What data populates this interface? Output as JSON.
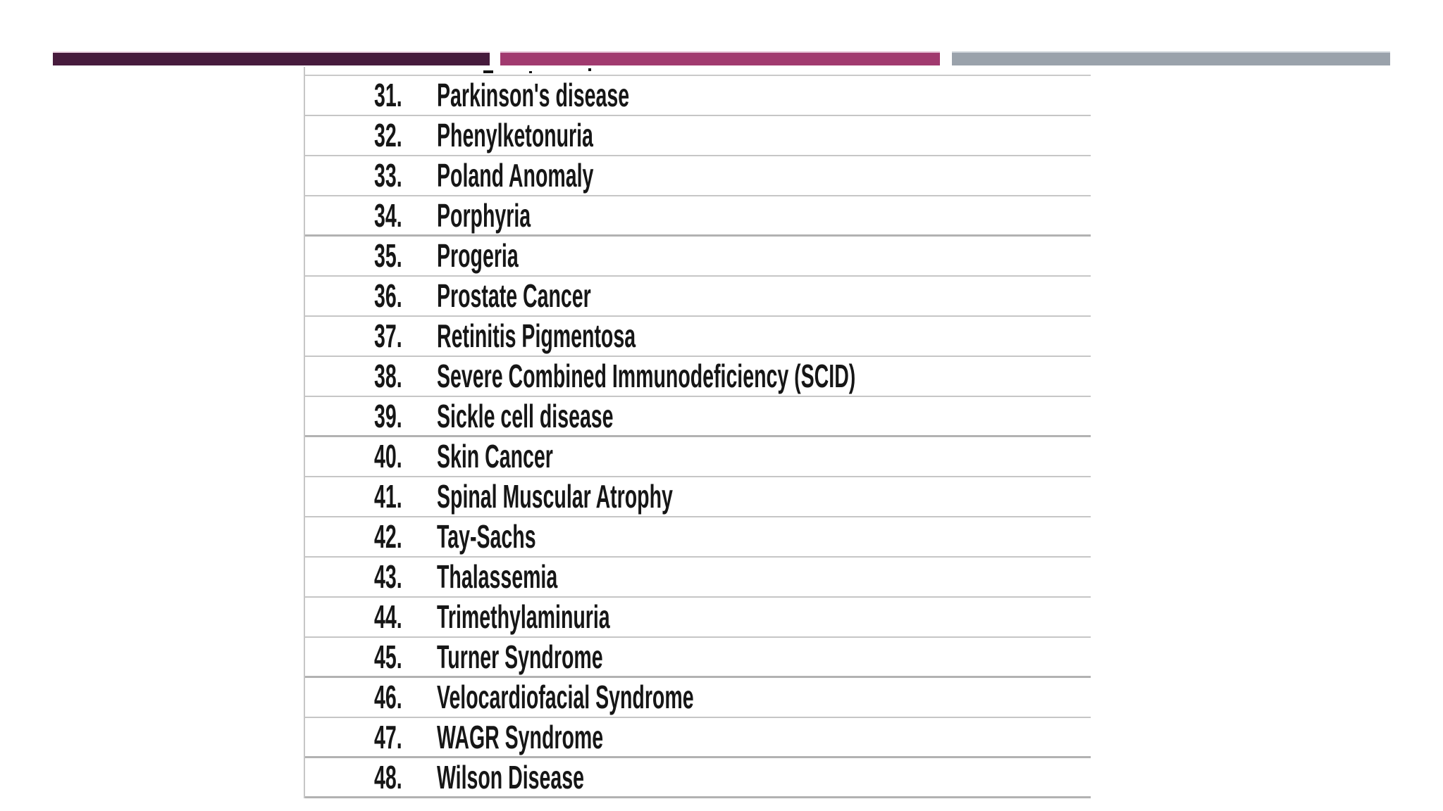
{
  "slide": {
    "decorative_bars": {
      "bar1_color": "#471b3d",
      "bar2_color": "#a13a6f",
      "bar3_color": "#9aa2ab"
    },
    "table": {
      "separator_color": "#c6c6c6",
      "text_color": "#161616",
      "items": [
        {
          "number": "31.",
          "name": "Parkinson's disease"
        },
        {
          "number": "32.",
          "name": "Phenylketonuria"
        },
        {
          "number": "33.",
          "name": "Poland Anomaly"
        },
        {
          "number": "34.",
          "name": "Porphyria"
        },
        {
          "number": "35.",
          "name": "Progeria"
        },
        {
          "number": "36.",
          "name": "Prostate Cancer"
        },
        {
          "number": "37.",
          "name": "Retinitis Pigmentosa"
        },
        {
          "number": "38.",
          "name": "Severe Combined Immunodeficiency (SCID)"
        },
        {
          "number": "39.",
          "name": "Sickle cell disease"
        },
        {
          "number": "40.",
          "name": "Skin Cancer"
        },
        {
          "number": "41.",
          "name": "Spinal Muscular Atrophy"
        },
        {
          "number": "42.",
          "name": "Tay-Sachs"
        },
        {
          "number": "43.",
          "name": "Thalassemia"
        },
        {
          "number": "44.",
          "name": "Trimethylaminuria"
        },
        {
          "number": "45.",
          "name": "Turner Syndrome"
        },
        {
          "number": "46.",
          "name": "Velocardiofacial Syndrome"
        },
        {
          "number": "47.",
          "name": "WAGR Syndrome"
        },
        {
          "number": "48.",
          "name": "Wilson Disease"
        }
      ]
    }
  }
}
